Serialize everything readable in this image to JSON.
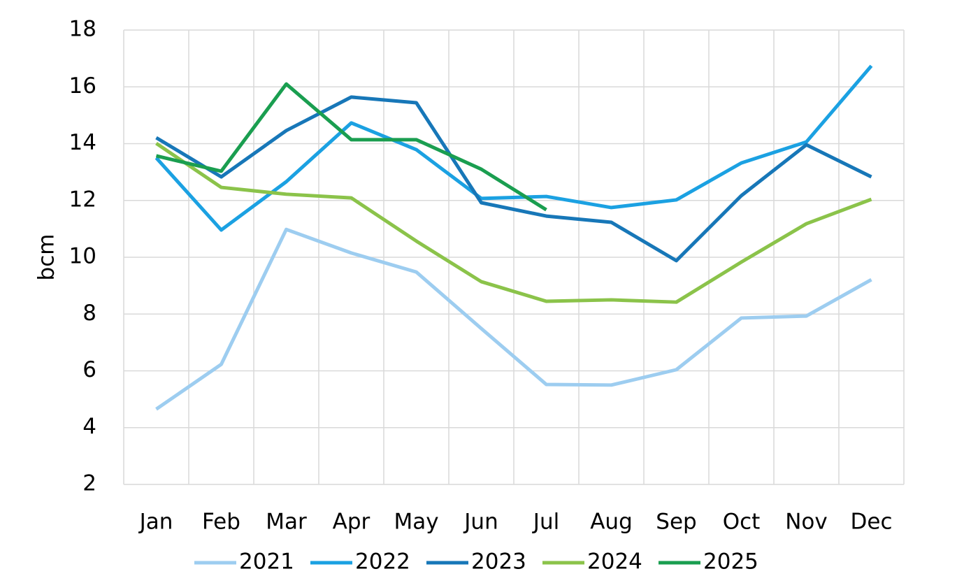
{
  "chart_data": {
    "type": "line",
    "y_axis_label": "bcm",
    "categories": [
      "Jan",
      "Feb",
      "Mar",
      "Apr",
      "May",
      "Jun",
      "Jul",
      "Aug",
      "Sep",
      "Oct",
      "Nov",
      "Dec"
    ],
    "series": [
      {
        "name": "2021",
        "color": "#9dcdf0",
        "values": [
          4.65,
          6.23,
          10.98,
          10.15,
          9.48,
          7.49,
          5.52,
          5.5,
          6.04,
          7.86,
          7.93,
          9.21
        ]
      },
      {
        "name": "2022",
        "color": "#1ba1e2",
        "values": [
          13.5,
          10.96,
          12.66,
          14.73,
          13.79,
          12.07,
          12.14,
          11.75,
          12.02,
          13.32,
          14.06,
          16.74
        ]
      },
      {
        "name": "2023",
        "color": "#1777b8",
        "values": [
          14.21,
          12.83,
          14.46,
          15.64,
          15.44,
          11.92,
          11.45,
          11.23,
          9.88,
          12.17,
          13.96,
          12.83
        ]
      },
      {
        "name": "2024",
        "color": "#8bc34a",
        "values": [
          14.01,
          12.46,
          12.22,
          12.09,
          10.57,
          9.14,
          8.45,
          8.5,
          8.42,
          9.83,
          11.18,
          12.04
        ]
      },
      {
        "name": "2025",
        "color": "#1a9e50",
        "values": [
          13.57,
          13.03,
          16.1,
          14.14,
          14.14,
          13.1,
          11.67,
          null,
          null,
          null,
          null,
          null
        ]
      }
    ],
    "ylim": [
      2,
      18
    ],
    "yticks": [
      2,
      4,
      6,
      8,
      10,
      12,
      14,
      16,
      18
    ],
    "grid": true,
    "legend": "bottom"
  }
}
